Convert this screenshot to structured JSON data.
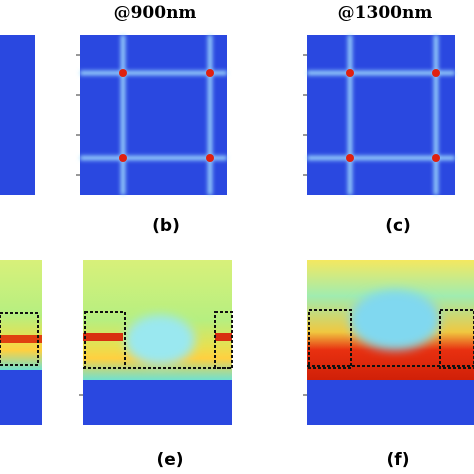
{
  "titles": [
    "@900nm",
    "@1300nm"
  ],
  "labels": [
    "(b)",
    "(c)",
    "(e)",
    "(f)"
  ]
}
